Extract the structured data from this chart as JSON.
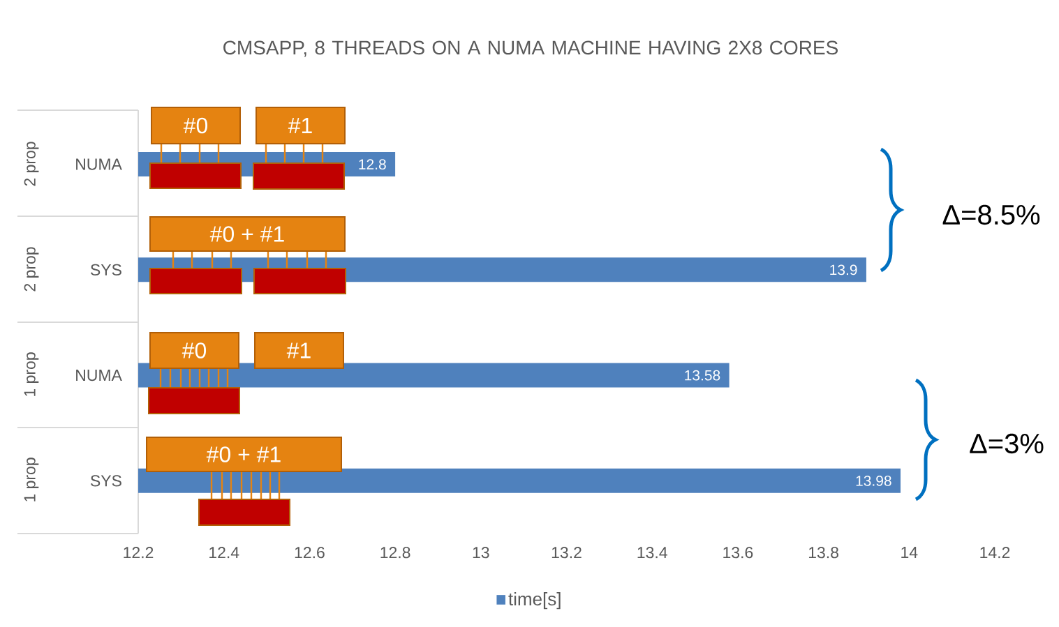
{
  "chart_data": {
    "type": "bar",
    "orientation": "horizontal",
    "title": "CMSAPP, 8 THREADS ON A NUMA MACHINE HAVING 2X8 CORES",
    "categories": [
      "NUMA",
      "SYS",
      "NUMA",
      "SYS"
    ],
    "series": [
      {
        "name": "time[s]",
        "color": "#4f81bd",
        "values": [
          12.8,
          13.9,
          13.58,
          13.98
        ]
      }
    ],
    "xlim": [
      12.2,
      14.2
    ],
    "xticks": [
      12.2,
      12.4,
      12.6,
      12.8,
      13,
      13.2,
      13.4,
      13.6,
      13.8,
      14,
      14.2
    ],
    "data_labels": true,
    "legend": "bottom",
    "grid": false,
    "annotations": [
      "2 prop",
      "2 prop",
      "1 prop",
      "1 prop",
      "Δ=8.5%",
      "Δ=3%",
      "#0",
      "#1",
      "#0 + #1",
      "#0",
      "#1",
      "#0 + #1"
    ]
  }
}
